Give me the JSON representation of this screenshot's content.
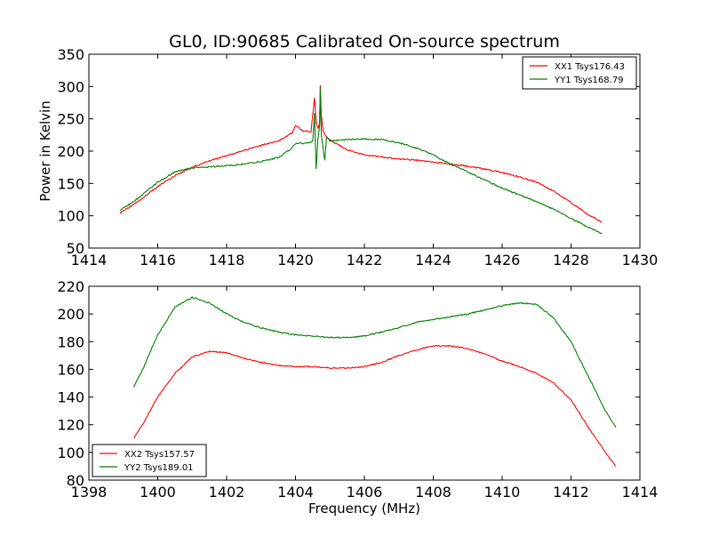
{
  "chart_data": [
    {
      "type": "line",
      "title": "GL0, ID:90685 Calibrated On-source spectrum",
      "xlabel": "",
      "ylabel": "Power in Kelvin",
      "xlim": [
        1414,
        1430
      ],
      "ylim": [
        50,
        350
      ],
      "xticks": [
        1414,
        1416,
        1418,
        1420,
        1422,
        1424,
        1426,
        1428,
        1430
      ],
      "yticks": [
        50,
        100,
        150,
        200,
        250,
        300,
        350
      ],
      "legend_position": "top-right",
      "grid": false,
      "series": [
        {
          "name": "XX1 Tsys176.43",
          "color": "#ff0000",
          "points": [
            [
              1414.9,
              104
            ],
            [
              1415.5,
              125
            ],
            [
              1416,
              145
            ],
            [
              1416.5,
              162
            ],
            [
              1417,
              175
            ],
            [
              1417.5,
              185
            ],
            [
              1418,
              193
            ],
            [
              1418.5,
              201
            ],
            [
              1419,
              209
            ],
            [
              1419.5,
              216
            ],
            [
              1419.9,
              228
            ],
            [
              1420.0,
              240
            ],
            [
              1420.2,
              232
            ],
            [
              1420.45,
              230
            ],
            [
              1420.55,
              282
            ],
            [
              1420.6,
              245
            ],
            [
              1420.65,
              235
            ],
            [
              1420.7,
              244
            ],
            [
              1420.72,
              302
            ],
            [
              1420.75,
              255
            ],
            [
              1420.8,
              232
            ],
            [
              1420.9,
              222
            ],
            [
              1421,
              217
            ],
            [
              1421.5,
              202
            ],
            [
              1422,
              194
            ],
            [
              1422.5,
              191
            ],
            [
              1423,
              188
            ],
            [
              1423.5,
              186
            ],
            [
              1424,
              183
            ],
            [
              1424.5,
              180
            ],
            [
              1425,
              177
            ],
            [
              1425.5,
              172
            ],
            [
              1426,
              167
            ],
            [
              1426.5,
              160
            ],
            [
              1427,
              152
            ],
            [
              1427.5,
              138
            ],
            [
              1428,
              120
            ],
            [
              1428.5,
              102
            ],
            [
              1428.9,
              90
            ]
          ]
        },
        {
          "name": "YY1 Tsys168.79",
          "color": "#008000",
          "points": [
            [
              1414.9,
              108
            ],
            [
              1415.5,
              130
            ],
            [
              1416,
              152
            ],
            [
              1416.5,
              168
            ],
            [
              1417,
              174
            ],
            [
              1417.5,
              176
            ],
            [
              1418,
              177
            ],
            [
              1418.5,
              180
            ],
            [
              1419,
              184
            ],
            [
              1419.5,
              190
            ],
            [
              1419.9,
              205
            ],
            [
              1420,
              212
            ],
            [
              1420.3,
              212
            ],
            [
              1420.5,
              215
            ],
            [
              1420.55,
              258
            ],
            [
              1420.6,
              172
            ],
            [
              1420.65,
              218
            ],
            [
              1420.7,
              240
            ],
            [
              1420.72,
              299
            ],
            [
              1420.75,
              225
            ],
            [
              1420.8,
              205
            ],
            [
              1420.85,
              185
            ],
            [
              1420.9,
              222
            ],
            [
              1421,
              216
            ],
            [
              1421.5,
              218
            ],
            [
              1422,
              219
            ],
            [
              1422.5,
              218
            ],
            [
              1423,
              213
            ],
            [
              1423.5,
              205
            ],
            [
              1424,
              194
            ],
            [
              1424.5,
              180
            ],
            [
              1425,
              168
            ],
            [
              1425.5,
              155
            ],
            [
              1426,
              143
            ],
            [
              1426.5,
              132
            ],
            [
              1427,
              122
            ],
            [
              1427.5,
              110
            ],
            [
              1428,
              96
            ],
            [
              1428.5,
              82
            ],
            [
              1428.9,
              72
            ]
          ]
        }
      ]
    },
    {
      "type": "line",
      "title": "",
      "xlabel": "Frequency (MHz)",
      "ylabel": "",
      "xlim": [
        1398,
        1414
      ],
      "ylim": [
        80,
        220
      ],
      "xticks": [
        1398,
        1400,
        1402,
        1404,
        1406,
        1408,
        1410,
        1412,
        1414
      ],
      "yticks": [
        80,
        100,
        120,
        140,
        160,
        180,
        200,
        220
      ],
      "legend_position": "bottom-left",
      "grid": false,
      "series": [
        {
          "name": "XX2 Tsys157.57",
          "color": "#ff0000",
          "points": [
            [
              1399.3,
              110
            ],
            [
              1399.6,
              122
            ],
            [
              1400,
              140
            ],
            [
              1400.5,
              157
            ],
            [
              1401,
              169
            ],
            [
              1401.5,
              173
            ],
            [
              1402,
              172
            ],
            [
              1402.5,
              168
            ],
            [
              1403,
              165
            ],
            [
              1403.5,
              163
            ],
            [
              1404,
              162
            ],
            [
              1404.5,
              162
            ],
            [
              1405,
              161
            ],
            [
              1405.5,
              161
            ],
            [
              1406,
              162
            ],
            [
              1406.5,
              165
            ],
            [
              1407,
              170
            ],
            [
              1407.5,
              174
            ],
            [
              1408,
              177
            ],
            [
              1408.5,
              177
            ],
            [
              1409,
              175
            ],
            [
              1409.5,
              171
            ],
            [
              1410,
              166
            ],
            [
              1410.5,
              162
            ],
            [
              1411,
              157
            ],
            [
              1411.5,
              150
            ],
            [
              1412,
              138
            ],
            [
              1412.5,
              118
            ],
            [
              1413,
              100
            ],
            [
              1413.3,
              90
            ]
          ]
        },
        {
          "name": "YY2 Tsys189.01",
          "color": "#008000",
          "points": [
            [
              1399.3,
              147
            ],
            [
              1399.6,
              162
            ],
            [
              1400,
              185
            ],
            [
              1400.5,
              205
            ],
            [
              1401,
              212
            ],
            [
              1401.5,
              208
            ],
            [
              1402,
              200
            ],
            [
              1402.5,
              194
            ],
            [
              1403,
              190
            ],
            [
              1403.5,
              187
            ],
            [
              1404,
              185
            ],
            [
              1404.5,
              184
            ],
            [
              1405,
              183
            ],
            [
              1405.5,
              183
            ],
            [
              1406,
              184
            ],
            [
              1406.5,
              187
            ],
            [
              1407,
              190
            ],
            [
              1407.5,
              194
            ],
            [
              1408,
              196
            ],
            [
              1408.5,
              198
            ],
            [
              1409,
              200
            ],
            [
              1409.5,
              203
            ],
            [
              1410,
              206
            ],
            [
              1410.5,
              208
            ],
            [
              1411,
              207
            ],
            [
              1411.5,
              197
            ],
            [
              1412,
              180
            ],
            [
              1412.5,
              155
            ],
            [
              1413,
              130
            ],
            [
              1413.3,
              118
            ]
          ]
        }
      ]
    }
  ]
}
